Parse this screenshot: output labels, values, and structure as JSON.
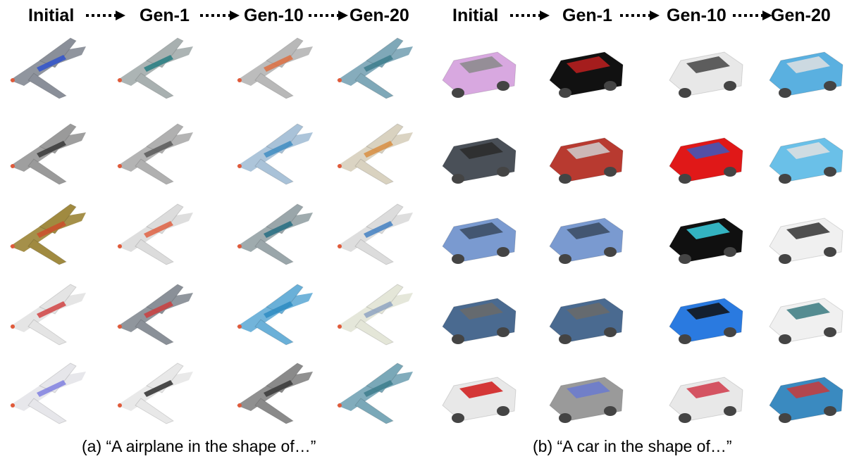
{
  "panels": [
    {
      "id": "a",
      "stages": [
        "Initial",
        "Gen-1",
        "Gen-10",
        "Gen-20"
      ],
      "caption": "(a) “A airplane in the shape of…”",
      "subject": "airplane",
      "rows": [
        [
          {
            "body": "#8a8f99",
            "accent": "#2a4fd0"
          },
          {
            "body": "#a8b0b0",
            "accent": "#1e7a80"
          },
          {
            "body": "#b8b8b8",
            "accent": "#e06a3a"
          },
          {
            "body": "#7fa8b8",
            "accent": "#3a7a8a"
          }
        ],
        [
          {
            "body": "#9a9a9a",
            "accent": "#333333"
          },
          {
            "body": "#b0b0b0",
            "accent": "#555555"
          },
          {
            "body": "#a9c2d8",
            "accent": "#3a8ac0"
          },
          {
            "body": "#d9d2c0",
            "accent": "#d88a3a"
          }
        ],
        [
          {
            "body": "#a08a40",
            "accent": "#d04a2a"
          },
          {
            "body": "#dcdcdc",
            "accent": "#e05a3a"
          },
          {
            "body": "#9aa6aa",
            "accent": "#1e6a80"
          },
          {
            "body": "#dcdcdc",
            "accent": "#3a7ac0"
          }
        ],
        [
          {
            "body": "#e4e4e4",
            "accent": "#d03a3a"
          },
          {
            "body": "#8a9098",
            "accent": "#d03a3a"
          },
          {
            "body": "#6ab0d8",
            "accent": "#2a8ac0"
          },
          {
            "body": "#e4e6d8",
            "accent": "#8aa0c0"
          }
        ],
        [
          {
            "body": "#e6e6ea",
            "accent": "#7a7ae0"
          },
          {
            "body": "#e8e8e8",
            "accent": "#222222"
          },
          {
            "body": "#8a8a8a",
            "accent": "#333333"
          },
          {
            "body": "#7aa8b8",
            "accent": "#3a7a8a"
          }
        ]
      ]
    },
    {
      "id": "b",
      "stages": [
        "Initial",
        "Gen-1",
        "Gen-10",
        "Gen-20"
      ],
      "caption": "(b) “A car in the shape of…”",
      "subject": "car",
      "rows": [
        [
          {
            "body": "#d8a8e0",
            "accent": "#8a8a8a"
          },
          {
            "body": "#111111",
            "accent": "#c02020"
          },
          {
            "body": "#e8e8e8",
            "accent": "#444444"
          },
          {
            "body": "#5ab0e0",
            "accent": "#e0e0e0"
          }
        ],
        [
          {
            "body": "#4a5058",
            "accent": "#2a2a2a"
          },
          {
            "body": "#b83a30",
            "accent": "#cfcfcf"
          },
          {
            "body": "#e01818",
            "accent": "#3a5ac0"
          },
          {
            "body": "#6ac0e8",
            "accent": "#e0e0e0"
          }
        ],
        [
          {
            "body": "#7a9ad0",
            "accent": "#3a4a60"
          },
          {
            "body": "#7a9ad0",
            "accent": "#3a4a60"
          },
          {
            "body": "#101010",
            "accent": "#3ad0e0"
          },
          {
            "body": "#f0f0f0",
            "accent": "#333333"
          }
        ],
        [
          {
            "body": "#4a6a90",
            "accent": "#6a6a6a"
          },
          {
            "body": "#4a6a90",
            "accent": "#6a6a6a"
          },
          {
            "body": "#2a7ae0",
            "accent": "#101010"
          },
          {
            "body": "#f0f0f0",
            "accent": "#3a7a80"
          }
        ],
        [
          {
            "body": "#e8e8e8",
            "accent": "#d01818"
          },
          {
            "body": "#9a9a9a",
            "accent": "#6a7ad0"
          },
          {
            "body": "#e8e8e8",
            "accent": "#d03a4a"
          },
          {
            "body": "#3a8ac0",
            "accent": "#c83a3a"
          }
        ]
      ]
    }
  ]
}
